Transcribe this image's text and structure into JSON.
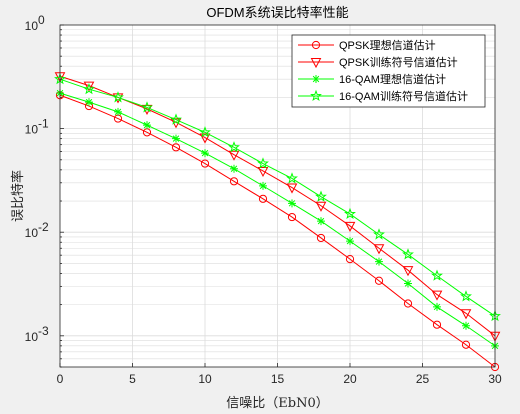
{
  "chart_data": {
    "type": "line",
    "title": "OFDM系统误比特率性能",
    "xlabel": "信噪比（EbN0）",
    "ylabel": "误比特率",
    "xlim": [
      0,
      30
    ],
    "ylim": [
      0.0005,
      1
    ],
    "y_scale": "log",
    "grid": true,
    "legend_position": "top-right",
    "x_ticks": [
      0,
      5,
      10,
      15,
      20,
      25,
      30
    ],
    "x_tick_labels": [
      "0",
      "5",
      "10",
      "15",
      "20",
      "25",
      "30"
    ],
    "y_ticks": [
      0.001,
      0.01,
      0.1,
      1
    ],
    "y_tick_labels": [
      {
        "base": "10",
        "exp": "-3"
      },
      {
        "base": "10",
        "exp": "-2"
      },
      {
        "base": "10",
        "exp": "-1"
      },
      {
        "base": "10",
        "exp": "0"
      }
    ],
    "x": [
      0,
      2,
      4,
      6,
      8,
      10,
      12,
      14,
      16,
      18,
      20,
      22,
      24,
      26,
      28,
      30
    ],
    "series": [
      {
        "name": "QPSK理想信道估计",
        "color": "#ff0000",
        "marker": "circle",
        "values": [
          0.21,
          0.165,
          0.125,
          0.092,
          0.066,
          0.046,
          0.031,
          0.021,
          0.014,
          0.0088,
          0.0055,
          0.0034,
          0.00205,
          0.00128,
          0.00082,
          0.0005
        ]
      },
      {
        "name": "QPSK训练符号信道估计",
        "color": "#ff0000",
        "marker": "triangle-down",
        "values": [
          0.32,
          0.26,
          0.2,
          0.155,
          0.115,
          0.082,
          0.056,
          0.039,
          0.027,
          0.018,
          0.0115,
          0.007,
          0.0043,
          0.0025,
          0.00165,
          0.001
        ]
      },
      {
        "name": "16-QAM理想信道估计",
        "color": "#00ff00",
        "marker": "asterisk",
        "values": [
          0.22,
          0.18,
          0.145,
          0.108,
          0.08,
          0.058,
          0.041,
          0.028,
          0.019,
          0.0128,
          0.0082,
          0.0052,
          0.0032,
          0.0019,
          0.00125,
          0.0008
        ]
      },
      {
        "name": "16-QAM训练符号信道估计",
        "color": "#00ff00",
        "marker": "star",
        "values": [
          0.3,
          0.24,
          0.2,
          0.16,
          0.122,
          0.092,
          0.066,
          0.046,
          0.033,
          0.022,
          0.015,
          0.0095,
          0.0061,
          0.0038,
          0.0024,
          0.00155
        ]
      }
    ]
  }
}
